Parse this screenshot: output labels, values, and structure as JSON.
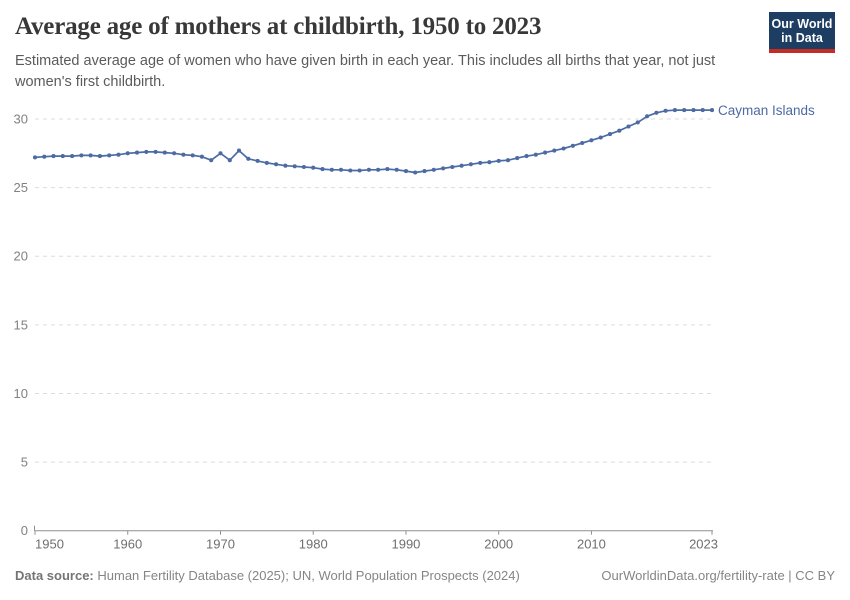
{
  "header": {
    "title": "Average age of mothers at childbirth, 1950 to 2023",
    "subtitle": "Estimated average age of women who have given birth in each year. This includes all births that year, not just women's first childbirth.",
    "logo_line1": "Our World",
    "logo_line2": "in Data"
  },
  "chart_data": {
    "type": "line",
    "title": "Average age of mothers at childbirth, 1950 to 2023",
    "entity_label": "Cayman Islands",
    "xlabel": "",
    "ylabel": "",
    "ylim": [
      0,
      32
    ],
    "yticks": [
      0,
      5,
      10,
      15,
      20,
      25,
      30
    ],
    "xticks": [
      1950,
      1960,
      1970,
      1980,
      1990,
      2000,
      2010,
      2023
    ],
    "grid": "horizontal-dashed",
    "legend_position": "end-of-line-label",
    "x": [
      1950,
      1951,
      1952,
      1953,
      1954,
      1955,
      1956,
      1957,
      1958,
      1959,
      1960,
      1961,
      1962,
      1963,
      1964,
      1965,
      1966,
      1967,
      1968,
      1969,
      1970,
      1971,
      1972,
      1973,
      1974,
      1975,
      1976,
      1977,
      1978,
      1979,
      1980,
      1981,
      1982,
      1983,
      1984,
      1985,
      1986,
      1987,
      1988,
      1989,
      1990,
      1991,
      1992,
      1993,
      1994,
      1995,
      1996,
      1997,
      1998,
      1999,
      2000,
      2001,
      2002,
      2003,
      2004,
      2005,
      2006,
      2007,
      2008,
      2009,
      2010,
      2011,
      2012,
      2013,
      2014,
      2015,
      2016,
      2017,
      2018,
      2019,
      2020,
      2021,
      2022,
      2023
    ],
    "series": [
      {
        "name": "Cayman Islands",
        "values": [
          27.2,
          27.25,
          27.3,
          27.3,
          27.3,
          27.35,
          27.35,
          27.3,
          27.35,
          27.4,
          27.5,
          27.55,
          27.6,
          27.6,
          27.55,
          27.5,
          27.4,
          27.35,
          27.25,
          27.0,
          27.5,
          27.0,
          27.7,
          27.1,
          26.95,
          26.8,
          26.7,
          26.6,
          26.55,
          26.5,
          26.45,
          26.35,
          26.3,
          26.3,
          26.25,
          26.25,
          26.3,
          26.3,
          26.35,
          26.3,
          26.2,
          26.1,
          26.2,
          26.3,
          26.4,
          26.5,
          26.6,
          26.7,
          26.8,
          26.85,
          26.95,
          27.0,
          27.15,
          27.3,
          27.4,
          27.55,
          27.7,
          27.85,
          28.05,
          28.25,
          28.45,
          28.65,
          28.9,
          29.15,
          29.45,
          29.75,
          30.2,
          30.45,
          30.6,
          30.65,
          30.65,
          30.65,
          30.65,
          30.65
        ]
      }
    ]
  },
  "colors": {
    "line": "#4d6ba3",
    "entity_label": "#4d6ba3",
    "grid": "#dcdcdc",
    "axis_line": "#8f8f8f",
    "ytick_label": "#818181",
    "xtick_label": "#6f6f6f"
  },
  "footer": {
    "datasource_label": "Data source:",
    "datasource_text": "Human Fertility Database (2025); UN, World Population Prospects (2024)",
    "license_text": "OurWorldinData.org/fertility-rate | CC BY"
  }
}
